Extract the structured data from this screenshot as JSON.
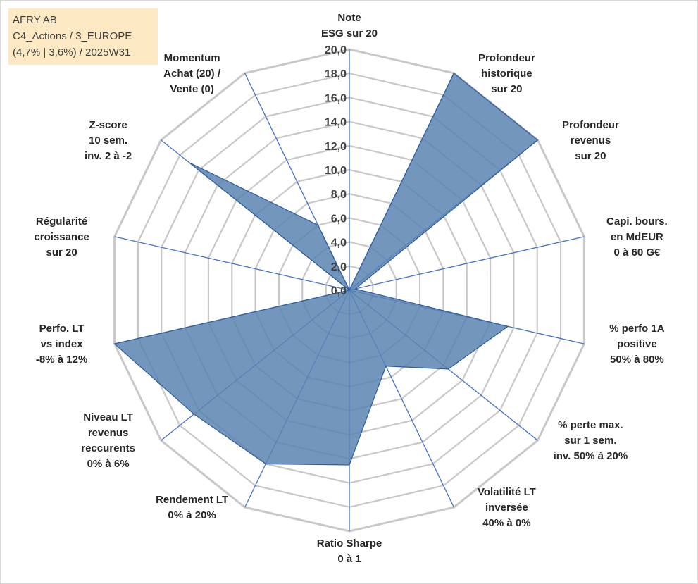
{
  "info": {
    "line1": "AFRY AB",
    "line2": "C4_Actions / 3_EUROPE",
    "line3": "(4,7% | 3,6%) / 2025W31"
  },
  "colors": {
    "fill": "#5b84b1",
    "stroke": "#2f5a9e",
    "grid": "#c8c8c8",
    "spoke": "#4472c4"
  },
  "chart_data": {
    "type": "radar",
    "rmin": 0,
    "rmax": 20,
    "ticks": [
      "0,0",
      "2,0",
      "4,0",
      "6,0",
      "8,0",
      "10,0",
      "12,0",
      "14,0",
      "16,0",
      "18,0",
      "20,0"
    ],
    "axes": [
      {
        "lines": [
          "Note",
          "ESG sur 20"
        ],
        "value": 0
      },
      {
        "lines": [
          "Profondeur",
          "historique",
          "sur 20"
        ],
        "value": 20
      },
      {
        "lines": [
          "Profondeur",
          "revenus",
          "sur 20"
        ],
        "value": 20
      },
      {
        "lines": [
          "Capi. bours.",
          "en MdEUR",
          "0 à 60 G€"
        ],
        "value": 0.5
      },
      {
        "lines": [
          "% perfo 1A",
          "positive",
          "50% à 80%"
        ],
        "value": 13.5
      },
      {
        "lines": [
          "% perte max.",
          "sur 1 sem.",
          "inv. 50% à 20%"
        ],
        "value": 10.5
      },
      {
        "lines": [
          "Volatilité LT",
          "inversée",
          "40% à 0%"
        ],
        "value": 7
      },
      {
        "lines": [
          "Ratio Sharpe",
          "0 à 1"
        ],
        "value": 14.5
      },
      {
        "lines": [
          "Rendement LT",
          "0% à 20%"
        ],
        "value": 16
      },
      {
        "lines": [
          "Niveau LT",
          "revenus",
          "reccurents",
          "0% à 6%"
        ],
        "value": 16.5
      },
      {
        "lines": [
          "Perfo. LT",
          "vs index",
          "-8% à 12%"
        ],
        "value": 20
      },
      {
        "lines": [
          "Régularité",
          "croissance",
          "sur 20"
        ],
        "value": 0
      },
      {
        "lines": [
          "Z-score",
          "10 sem.",
          "inv. 2 à -2"
        ],
        "value": 17
      },
      {
        "lines": [
          "Momentum",
          "Achat (20) /",
          "Vente (0)"
        ],
        "value": 6
      }
    ]
  }
}
